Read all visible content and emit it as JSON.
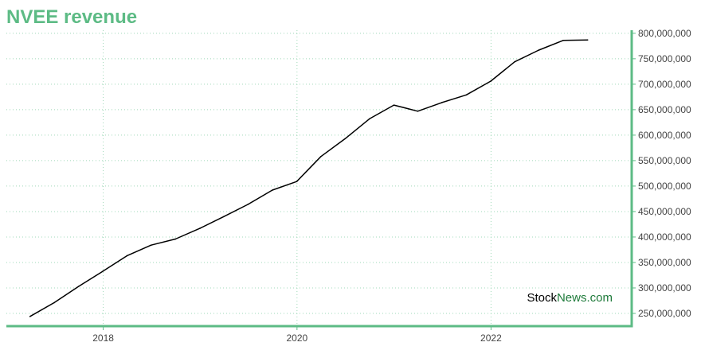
{
  "colors": {
    "title": "#5dbb85",
    "axis": "#5dbb85",
    "grid": "#9fd8b8",
    "line": "#000000",
    "watermark_primary": "#000000",
    "watermark_accent": "#1e7a3a"
  },
  "watermark": {
    "part1": "Stock",
    "part2": "News",
    "part3": ".com"
  },
  "chart_data": {
    "type": "line",
    "title": "NVEE revenue",
    "xlabel": "",
    "ylabel": "",
    "x_ticks": [
      "2018",
      "2020",
      "2022"
    ],
    "y_ticks": [
      "250,000,000",
      "300,000,000",
      "350,000,000",
      "400,000,000",
      "450,000,000",
      "500,000,000",
      "550,000,000",
      "600,000,000",
      "650,000,000",
      "700,000,000",
      "750,000,000",
      "800,000,000"
    ],
    "xlim": [
      "2017-01-01",
      "2023-06-15"
    ],
    "ylim": [
      225000000,
      806000000
    ],
    "grid": true,
    "axis_side": "right",
    "series": [
      {
        "x": [
          "2017-03-31",
          "2017-06-30",
          "2017-09-30",
          "2017-12-31",
          "2018-03-31",
          "2018-06-30",
          "2018-09-30",
          "2018-12-31",
          "2019-03-31",
          "2019-06-30",
          "2019-09-30",
          "2019-12-31",
          "2020-03-31",
          "2020-06-30",
          "2020-09-30",
          "2020-12-31",
          "2021-03-31",
          "2021-06-30",
          "2021-09-30",
          "2021-12-31",
          "2022-03-31",
          "2022-06-30",
          "2022-09-30",
          "2022-12-31"
        ],
        "values": [
          244000000,
          271000000,
          303000000,
          333000000,
          363000000,
          384000000,
          396000000,
          417000000,
          440000000,
          464000000,
          492000000,
          509000000,
          558000000,
          593000000,
          632000000,
          659000000,
          647000000,
          664000000,
          679000000,
          706000000,
          744000000,
          767000000,
          786000000,
          787000000
        ]
      }
    ]
  }
}
